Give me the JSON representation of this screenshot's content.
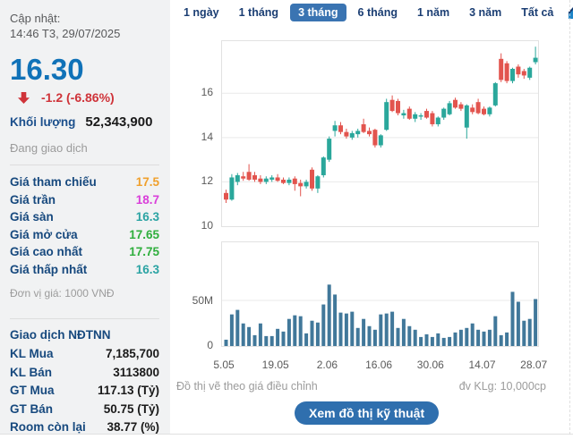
{
  "sidebar": {
    "updated_label": "Cập nhật:",
    "updated_time": "14:46 T3, 29/07/2025",
    "price": "16.30",
    "change": "-1.2 (-6.86%)",
    "volume_label": "Khối lượng",
    "volume_value": "52,343,900",
    "session_status": "Đang giao dịch",
    "price_rows": [
      {
        "label": "Giá tham chiếu",
        "value": "17.5",
        "color": "#f0a02c"
      },
      {
        "label": "Giá trần",
        "value": "18.7",
        "color": "#d93ed9"
      },
      {
        "label": "Giá sàn",
        "value": "16.3",
        "color": "#2aa3a3"
      },
      {
        "label": "Giá mở cửa",
        "value": "17.65",
        "color": "#2fae3d"
      },
      {
        "label": "Giá cao nhất",
        "value": "17.75",
        "color": "#2fae3d"
      },
      {
        "label": "Giá thấp nhất",
        "value": "16.3",
        "color": "#2aa3a3"
      }
    ],
    "unit_note": "Đơn vị giá: 1000 VNĐ",
    "foreign_title": "Giao dịch NĐTNN",
    "foreign_rows": [
      {
        "label": "KL Mua",
        "value": "7,185,700"
      },
      {
        "label": "KL Bán",
        "value": "3113800"
      },
      {
        "label": "GT Mua",
        "value": "117.13 (Tỷ)"
      },
      {
        "label": "GT Bán",
        "value": "50.75 (Tỷ)"
      },
      {
        "label": "Room còn lại",
        "value": "38.77 (%)"
      }
    ]
  },
  "tabs": {
    "items": [
      "1 ngày",
      "1 tháng",
      "3 tháng",
      "6 tháng",
      "1 năm",
      "3 năm",
      "Tất cả"
    ],
    "active": "3 tháng"
  },
  "footer": {
    "adjust_note": "Đồ thị vẽ theo giá điều chỉnh",
    "unit_note": "đv KLg: 10,000cp",
    "button_label": "Xem đồ thị kỹ thuật"
  },
  "chart_data": {
    "type": "candlestick_with_volume",
    "period": "3 tháng",
    "price_range": [
      10,
      18.35
    ],
    "price_ticks": [
      16,
      14,
      12,
      10
    ],
    "volume_ticks": [
      {
        "value": 50,
        "label": "50M"
      },
      {
        "value": 0,
        "label": "0"
      }
    ],
    "volume_unit": "millions_of_shares",
    "x_labels": [
      "5.05",
      "19.05",
      "2.06",
      "16.06",
      "30.06",
      "14.07",
      "28.07"
    ],
    "grid": true,
    "colors": {
      "up": "#2aa79b",
      "down": "#e2544e",
      "volume": "#41789a",
      "grid": "#e9e9e9"
    },
    "candles_ohlc": [
      [
        11.5,
        11.65,
        11.05,
        11.2
      ],
      [
        11.2,
        12.35,
        11.15,
        12.2
      ],
      [
        12.0,
        12.4,
        11.85,
        12.3
      ],
      [
        12.25,
        12.45,
        12.05,
        12.15
      ],
      [
        12.45,
        12.8,
        12.05,
        12.1
      ],
      [
        12.3,
        12.45,
        12.0,
        12.1
      ],
      [
        12.15,
        12.3,
        11.9,
        12.0
      ],
      [
        12.0,
        12.25,
        11.9,
        12.15
      ],
      [
        12.1,
        12.3,
        12.0,
        12.2
      ],
      [
        12.2,
        12.35,
        12.0,
        12.05
      ],
      [
        12.1,
        12.2,
        11.9,
        11.95
      ],
      [
        11.95,
        12.2,
        11.85,
        12.1
      ],
      [
        12.15,
        12.25,
        11.6,
        11.9
      ],
      [
        11.95,
        12.1,
        11.35,
        11.8
      ],
      [
        11.8,
        12.1,
        11.7,
        12.0
      ],
      [
        12.55,
        12.65,
        11.6,
        11.7
      ],
      [
        11.7,
        12.3,
        11.5,
        12.25
      ],
      [
        12.3,
        13.15,
        12.2,
        13.1
      ],
      [
        13.0,
        14.05,
        12.9,
        13.95
      ],
      [
        14.3,
        14.75,
        14.05,
        14.55
      ],
      [
        14.55,
        14.7,
        14.15,
        14.25
      ],
      [
        14.25,
        14.4,
        13.95,
        14.05
      ],
      [
        14.0,
        14.3,
        13.9,
        14.2
      ],
      [
        14.15,
        14.4,
        14.0,
        14.3
      ],
      [
        14.6,
        14.85,
        14.2,
        14.25
      ],
      [
        14.3,
        14.45,
        14.05,
        14.15
      ],
      [
        14.35,
        14.4,
        13.55,
        13.65
      ],
      [
        13.65,
        14.15,
        13.55,
        14.1
      ],
      [
        14.35,
        15.75,
        14.3,
        15.6
      ],
      [
        15.7,
        15.9,
        15.15,
        15.2
      ],
      [
        15.65,
        15.75,
        15.0,
        15.1
      ],
      [
        15.0,
        15.25,
        14.85,
        15.1
      ],
      [
        15.3,
        15.4,
        14.8,
        14.85
      ],
      [
        14.85,
        15.15,
        14.7,
        15.05
      ],
      [
        14.95,
        15.1,
        14.8,
        15.0
      ],
      [
        15.2,
        15.3,
        14.85,
        14.9
      ],
      [
        15.1,
        15.2,
        14.5,
        14.6
      ],
      [
        14.6,
        14.95,
        14.5,
        14.9
      ],
      [
        14.9,
        15.35,
        14.8,
        15.3
      ],
      [
        15.05,
        15.65,
        15.0,
        15.55
      ],
      [
        15.7,
        15.8,
        15.3,
        15.35
      ],
      [
        15.5,
        15.6,
        15.2,
        15.3
      ],
      [
        14.45,
        15.5,
        13.95,
        15.45
      ],
      [
        15.35,
        15.5,
        15.05,
        15.15
      ],
      [
        15.6,
        15.75,
        15.05,
        15.1
      ],
      [
        15.3,
        15.4,
        15.0,
        15.05
      ],
      [
        15.05,
        15.4,
        14.95,
        15.35
      ],
      [
        15.45,
        16.5,
        15.4,
        16.45
      ],
      [
        17.55,
        17.8,
        16.5,
        16.6
      ],
      [
        17.35,
        17.45,
        16.45,
        16.55
      ],
      [
        16.55,
        17.15,
        16.45,
        17.1
      ],
      [
        17.2,
        17.3,
        16.7,
        16.85
      ],
      [
        17.0,
        17.1,
        16.65,
        16.8
      ],
      [
        16.7,
        17.2,
        16.6,
        17.15
      ],
      [
        17.4,
        18.1,
        17.3,
        17.6
      ]
    ],
    "volumes": [
      7,
      35,
      40,
      25,
      21,
      12,
      25,
      11,
      11,
      19,
      16,
      30,
      34,
      33,
      14,
      28,
      26,
      46,
      68,
      57,
      37,
      36,
      38,
      20,
      30,
      22,
      18,
      35,
      36,
      38,
      20,
      30,
      22,
      18,
      10,
      13,
      10,
      14,
      9,
      10,
      15,
      18,
      20,
      25,
      18,
      16,
      18,
      33,
      12,
      15,
      60,
      49,
      28,
      30,
      52
    ]
  }
}
